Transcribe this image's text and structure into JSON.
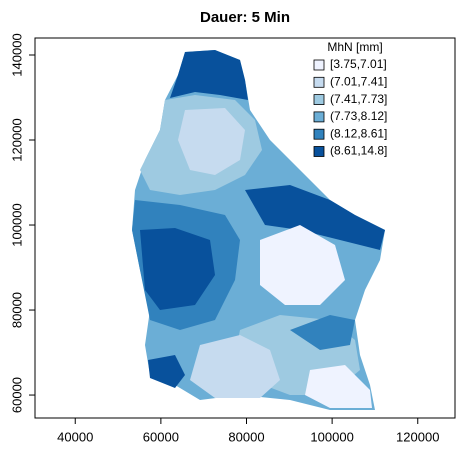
{
  "chart_data": {
    "type": "raster-map",
    "title": "Dauer: 5 Min",
    "legend_title": "MhN [mm]",
    "classes": [
      "[3.75,7.01]",
      "(7.01,7.41]",
      "(7.41,7.73]",
      "(7.73,8.12]",
      "(8.12,8.61]",
      "(8.61,14.8]"
    ],
    "colors": [
      "#eff3ff",
      "#c6dbef",
      "#9ecae1",
      "#6baed6",
      "#3182bd",
      "#08519c"
    ],
    "legend_position": "top-right",
    "xlim": [
      30600,
      128700
    ],
    "xticks": [
      40000,
      60000,
      80000,
      100000,
      120000
    ],
    "ylim": [
      54600,
      144000
    ],
    "yticks": [
      60000,
      80000,
      100000,
      120000,
      140000
    ]
  }
}
